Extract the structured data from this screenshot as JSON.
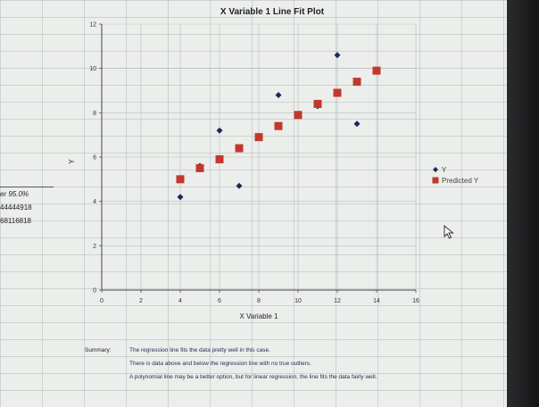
{
  "chart_data": {
    "type": "scatter",
    "title": "X Variable 1 Line Fit Plot",
    "xlabel": "X Variable 1",
    "ylabel": "Y",
    "xlim": [
      0,
      16
    ],
    "ylim": [
      0,
      12
    ],
    "x_ticks": [
      "0",
      "2",
      "4",
      "6",
      "8",
      "10",
      "12",
      "14",
      "16"
    ],
    "y_ticks": [
      "0",
      "2",
      "4",
      "6",
      "8",
      "10",
      "12"
    ],
    "legend_position": "right",
    "series": [
      {
        "name": "Y",
        "marker": "diamond",
        "color": "#1a2a5e",
        "points": [
          [
            4,
            4.2
          ],
          [
            5,
            5.6
          ],
          [
            6,
            7.2
          ],
          [
            7,
            4.7
          ],
          [
            9,
            8.8
          ],
          [
            11,
            8.3
          ],
          [
            12,
            10.6
          ],
          [
            13,
            7.5
          ]
        ]
      },
      {
        "name": "Predicted Y",
        "marker": "square",
        "color": "#c0392b",
        "points": [
          [
            4,
            5.0
          ],
          [
            5,
            5.5
          ],
          [
            6,
            5.9
          ],
          [
            7,
            6.4
          ],
          [
            8,
            6.9
          ],
          [
            9,
            7.4
          ],
          [
            10,
            7.9
          ],
          [
            11,
            8.4
          ],
          [
            12,
            8.9
          ],
          [
            13,
            9.4
          ],
          [
            14,
            9.9
          ]
        ]
      }
    ]
  },
  "cells": {
    "conf_label": "er 95.0%",
    "value_1": "44444918",
    "value_2": "68116818"
  },
  "summary": {
    "label": "Summary:",
    "line1": "The regression line fits the data pretty well in this case.",
    "line2": "There is data above and below the regression line with no true outliers.",
    "line3": "A polynomial line may be a better option, but for linear regression, the line fits the data fairly well."
  },
  "icons": {
    "cursor": "mouse-pointer-icon"
  }
}
